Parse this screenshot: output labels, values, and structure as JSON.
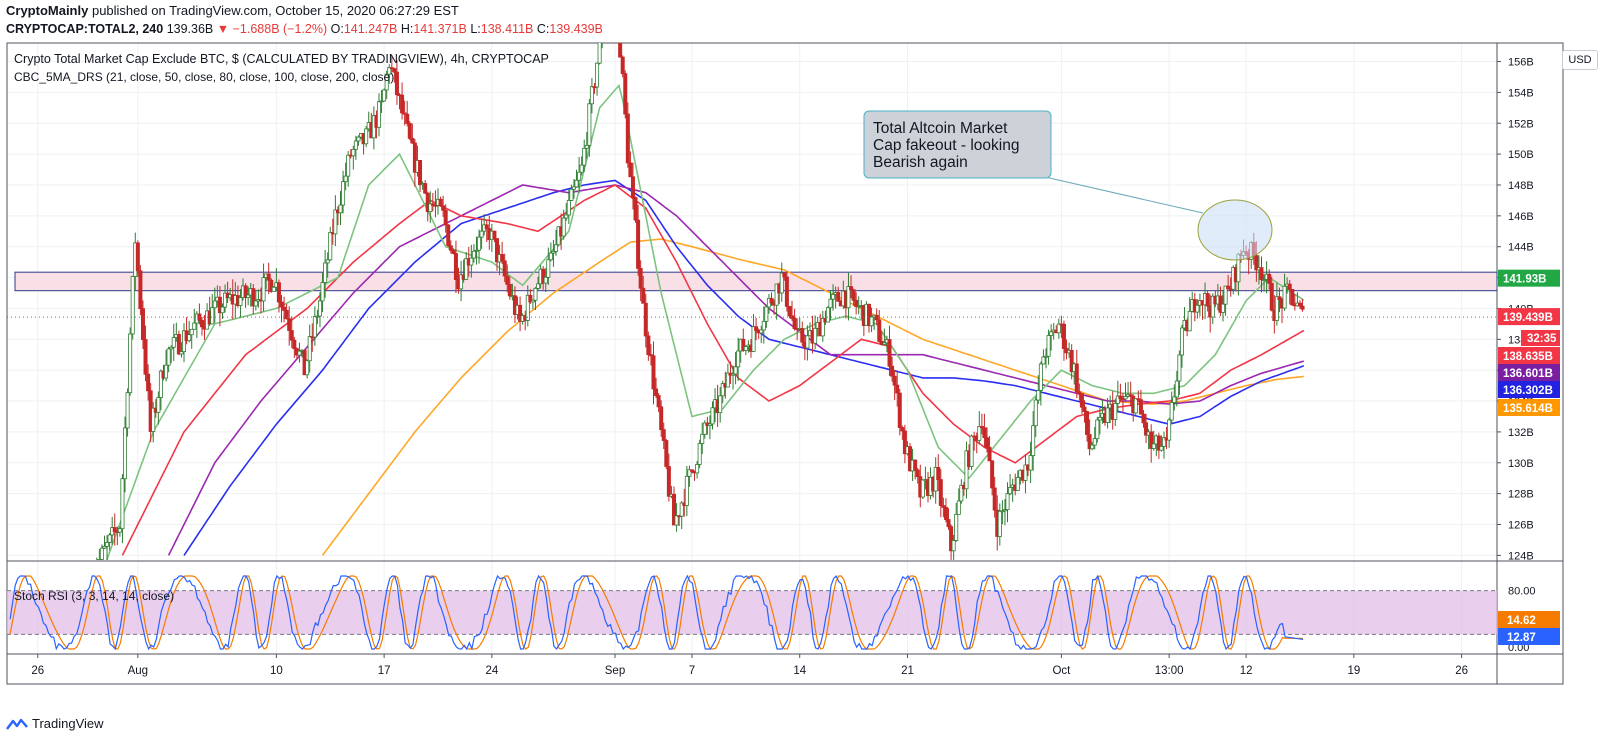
{
  "header": {
    "publisher": "CryptoMainly",
    "published_text": "published on TradingView.com, October 15, 2020 06:27:29 EST",
    "symbol": "CRYPTOCAP:TOTAL2, 240",
    "last": "139.36B",
    "change": "▼ −1.688B (−1.2%)",
    "o_label": "O:",
    "o_value": "141.247B",
    "h_label": "H:",
    "h_value": "141.371B",
    "l_label": "L:",
    "l_value": "138.411B",
    "c_label": "C:",
    "c_value": "139.439B"
  },
  "legend": {
    "title": "Crypto Total Market Cap Exclude BTC, $ (CALCULATED BY TRADINGVIEW), 4h, CRYPTOCAP",
    "ma_indicator": "CBC_5MA_DRS (21, close, 50, close, 80, close, 100, close, 200, close)",
    "rsi_indicator": "Stoch RSI (3, 3, 14, 14, close)"
  },
  "currency": "USD",
  "annotation": "Total Altcoin Market Cap fakeout - looking Bearish again",
  "annotation_lines": [
    "Total Altcoin Market",
    "Cap fakeout - looking",
    "Bearish again"
  ],
  "footer": {
    "brand": "TradingView"
  },
  "colors": {
    "up": "#2e7d32",
    "down": "#c62828",
    "ma21": "#7cc47f",
    "ma50": "#f23645",
    "ma80": "#9c27b0",
    "ma100": "#2a2ef0",
    "ma200": "#ffa726",
    "rsi_k": "#2962ff",
    "rsi_d": "#f57c00",
    "rsi_band": "#e1bee7",
    "resistance_fill": "#f8e0e6",
    "resistance_border": "#2e3a8c"
  },
  "chart_data": [
    {
      "type": "candlestick",
      "title": "Crypto Total Market Cap Exclude BTC, $ (CALCULATED BY TRADINGVIEW), 4h, CRYPTOCAP",
      "y_unit": "B",
      "ylim": [
        123.7,
        157.2
      ],
      "y_ticks": [
        124,
        126,
        128,
        130,
        132,
        134,
        136,
        138,
        140,
        142,
        144,
        146,
        148,
        150,
        152,
        154,
        156
      ],
      "y_tick_labels": [
        "124B",
        "126B",
        "128B",
        "130B",
        "132B",
        "134B",
        "136B",
        "138B",
        "140B",
        "142B",
        "144B",
        "146B",
        "148B",
        "150B",
        "152B",
        "154B",
        "156B"
      ],
      "x_tick_labels": [
        "26",
        "Aug",
        "10",
        "17",
        "24",
        "Sep",
        "7",
        "14",
        "21",
        "Oct",
        "13:00",
        "12",
        "19",
        "26"
      ],
      "x_tick_days": [
        -5.5,
        1,
        10,
        17,
        24,
        32,
        37,
        44,
        51,
        61,
        68,
        73,
        80,
        87
      ],
      "x_range_days": [
        -7.5,
        89.3
      ],
      "last_data_day": 76.8,
      "series_anchors": {
        "price": [
          [
            -2,
            122.5
          ],
          [
            0,
            126
          ],
          [
            1,
            144.5
          ],
          [
            2,
            132
          ],
          [
            3,
            137
          ],
          [
            5,
            139
          ],
          [
            7,
            140.5
          ],
          [
            9,
            141
          ],
          [
            10,
            142
          ],
          [
            11,
            139
          ],
          [
            12,
            136
          ],
          [
            13,
            140.5
          ],
          [
            14,
            146
          ],
          [
            15,
            150
          ],
          [
            16,
            151
          ],
          [
            17,
            153
          ],
          [
            17.5,
            156
          ],
          [
            18,
            154
          ],
          [
            19,
            150
          ],
          [
            20,
            147
          ],
          [
            21,
            146
          ],
          [
            22,
            142
          ],
          [
            23,
            144
          ],
          [
            24,
            145
          ],
          [
            25,
            142
          ],
          [
            26,
            139
          ],
          [
            27,
            141.5
          ],
          [
            28,
            143
          ],
          [
            29,
            146
          ],
          [
            30,
            149
          ],
          [
            31,
            156
          ],
          [
            32,
            161
          ],
          [
            32.5,
            157
          ],
          [
            33,
            150
          ],
          [
            34,
            140
          ],
          [
            35,
            133
          ],
          [
            36,
            126
          ],
          [
            37,
            129
          ],
          [
            38,
            132
          ],
          [
            39,
            134
          ],
          [
            40,
            137
          ],
          [
            41,
            138
          ],
          [
            42,
            140
          ],
          [
            43,
            142
          ],
          [
            44,
            138
          ],
          [
            45,
            138
          ],
          [
            46,
            140
          ],
          [
            47,
            141
          ],
          [
            48,
            140
          ],
          [
            49,
            139
          ],
          [
            50,
            137
          ],
          [
            51,
            131
          ],
          [
            52,
            128
          ],
          [
            53,
            129
          ],
          [
            54,
            124.5
          ],
          [
            55,
            130
          ],
          [
            56,
            133
          ],
          [
            57,
            126
          ],
          [
            58,
            128.5
          ],
          [
            59,
            130
          ],
          [
            60,
            137
          ],
          [
            61,
            139
          ],
          [
            62,
            136
          ],
          [
            63,
            131
          ],
          [
            64,
            133
          ],
          [
            65,
            134
          ],
          [
            66,
            134
          ],
          [
            67,
            131
          ],
          [
            68,
            131
          ],
          [
            69,
            138
          ],
          [
            70,
            141
          ],
          [
            71,
            140
          ],
          [
            72,
            141
          ],
          [
            73,
            144
          ],
          [
            74,
            143
          ],
          [
            75,
            140
          ],
          [
            76,
            141
          ],
          [
            76.8,
            139.44
          ]
        ],
        "ma21": [
          [
            -2,
            121
          ],
          [
            2,
            132
          ],
          [
            6,
            139
          ],
          [
            10,
            140
          ],
          [
            14,
            142
          ],
          [
            16,
            148
          ],
          [
            18,
            150
          ],
          [
            21,
            144
          ],
          [
            24,
            143
          ],
          [
            26,
            141.5
          ],
          [
            29,
            145
          ],
          [
            31,
            153
          ],
          [
            32.3,
            154.5
          ],
          [
            33,
            151
          ],
          [
            35,
            141
          ],
          [
            37,
            133
          ],
          [
            39,
            133.5
          ],
          [
            41,
            136
          ],
          [
            43,
            138
          ],
          [
            45,
            139
          ],
          [
            47,
            139.5
          ],
          [
            49,
            139
          ],
          [
            51,
            136
          ],
          [
            53,
            131
          ],
          [
            55,
            129
          ],
          [
            57,
            131.5
          ],
          [
            59,
            134
          ],
          [
            61,
            136
          ],
          [
            63,
            135
          ],
          [
            65,
            134.5
          ],
          [
            67,
            134.5
          ],
          [
            69,
            135
          ],
          [
            71,
            137
          ],
          [
            73,
            140.5
          ],
          [
            74.5,
            142
          ],
          [
            76.8,
            140.5
          ]
        ],
        "ma50": [
          [
            0,
            124
          ],
          [
            4,
            132
          ],
          [
            8,
            137
          ],
          [
            12,
            140
          ],
          [
            15,
            143
          ],
          [
            18,
            145.5
          ],
          [
            20,
            147
          ],
          [
            22,
            146
          ],
          [
            25,
            145.5
          ],
          [
            27,
            145
          ],
          [
            30,
            147
          ],
          [
            32,
            148
          ],
          [
            34,
            146.5
          ],
          [
            36,
            143
          ],
          [
            38,
            139
          ],
          [
            40,
            135.5
          ],
          [
            42,
            134
          ],
          [
            44,
            135
          ],
          [
            46,
            136.5
          ],
          [
            48,
            138
          ],
          [
            50,
            137.5
          ],
          [
            52,
            134.5
          ],
          [
            54,
            132.5
          ],
          [
            56,
            131
          ],
          [
            58,
            130
          ],
          [
            60,
            131.5
          ],
          [
            62,
            133
          ],
          [
            64,
            133.5
          ],
          [
            66,
            133.8
          ],
          [
            68,
            134
          ],
          [
            70,
            134.5
          ],
          [
            72,
            136
          ],
          [
            74,
            137
          ],
          [
            76.8,
            138.6
          ]
        ],
        "ma80": [
          [
            3,
            124
          ],
          [
            6,
            130
          ],
          [
            9,
            134
          ],
          [
            12,
            137.5
          ],
          [
            15,
            141
          ],
          [
            18,
            144
          ],
          [
            20,
            145
          ],
          [
            23,
            146.5
          ],
          [
            26,
            148
          ],
          [
            29,
            147.5
          ],
          [
            32,
            148
          ],
          [
            34,
            147.5
          ],
          [
            36,
            146
          ],
          [
            38,
            144
          ],
          [
            40,
            142
          ],
          [
            42,
            140
          ],
          [
            44,
            138.5
          ],
          [
            46,
            137
          ],
          [
            48,
            137
          ],
          [
            50,
            137
          ],
          [
            52,
            137
          ],
          [
            54,
            136.5
          ],
          [
            56,
            136
          ],
          [
            58,
            135.5
          ],
          [
            60,
            135
          ],
          [
            62,
            134.5
          ],
          [
            64,
            134
          ],
          [
            66,
            134
          ],
          [
            68,
            133.8
          ],
          [
            70,
            134
          ],
          [
            72,
            135
          ],
          [
            74,
            135.8
          ],
          [
            76.8,
            136.6
          ]
        ],
        "ma100": [
          [
            4,
            124
          ],
          [
            7,
            128.5
          ],
          [
            10,
            132.5
          ],
          [
            13,
            136
          ],
          [
            16,
            140
          ],
          [
            19,
            143
          ],
          [
            22,
            145.5
          ],
          [
            25,
            146.5
          ],
          [
            28,
            147.5
          ],
          [
            30,
            148
          ],
          [
            32,
            148.3
          ],
          [
            34,
            147
          ],
          [
            36,
            144
          ],
          [
            38,
            141.5
          ],
          [
            40,
            139.5
          ],
          [
            42,
            138
          ],
          [
            44,
            137.5
          ],
          [
            46,
            137
          ],
          [
            48,
            136.5
          ],
          [
            50,
            136
          ],
          [
            52,
            135.5
          ],
          [
            54,
            135.5
          ],
          [
            56,
            135.3
          ],
          [
            58,
            135
          ],
          [
            60,
            134.5
          ],
          [
            62,
            134
          ],
          [
            64,
            133.5
          ],
          [
            66,
            133
          ],
          [
            68,
            132.5
          ],
          [
            70,
            133
          ],
          [
            72,
            134.3
          ],
          [
            74,
            135.3
          ],
          [
            76.8,
            136.3
          ]
        ],
        "ma200": [
          [
            13,
            124
          ],
          [
            16,
            128
          ],
          [
            19,
            132
          ],
          [
            22,
            135.5
          ],
          [
            25,
            138.5
          ],
          [
            28,
            141
          ],
          [
            31,
            143
          ],
          [
            33,
            144.3
          ],
          [
            35,
            144.5
          ],
          [
            37,
            144
          ],
          [
            40,
            143.2
          ],
          [
            43,
            142.5
          ],
          [
            46,
            141
          ],
          [
            49,
            139.5
          ],
          [
            52,
            138
          ],
          [
            55,
            137
          ],
          [
            58,
            136
          ],
          [
            61,
            135
          ],
          [
            64,
            134
          ],
          [
            67,
            133.8
          ],
          [
            69,
            134
          ],
          [
            71,
            134.5
          ],
          [
            73,
            135
          ],
          [
            75,
            135.4
          ],
          [
            76.8,
            135.6
          ]
        ]
      },
      "resistance_zone": [
        141.15,
        142.35
      ],
      "price_labels": [
        {
          "value": 141.93,
          "text": "141.93B",
          "color": "#22a745"
        },
        {
          "value": 139.439,
          "text": "139.439B",
          "color": "#f23645"
        },
        {
          "value": 138.635,
          "text": "138.635B",
          "color": "#f23645"
        },
        {
          "value": 136.601,
          "text": "136.601B",
          "color": "#7b1fa2"
        },
        {
          "value": 136.302,
          "text": "136.302B",
          "color": "#2222e0"
        },
        {
          "value": 135.614,
          "text": "135.614B",
          "color": "#ff9800"
        }
      ],
      "countdown": "32:35"
    },
    {
      "type": "line",
      "title": "Stoch RSI (3, 3, 14, 14, close)",
      "ylim": [
        0,
        100
      ],
      "bands": [
        20,
        80
      ],
      "y_tick_labels": [
        "80.00",
        "0.00"
      ],
      "last_values": [
        {
          "value": 14.62,
          "text": "14.62",
          "color": "#f57c00"
        },
        {
          "value": 12.87,
          "text": "12.87",
          "color": "#2962ff"
        }
      ]
    }
  ]
}
